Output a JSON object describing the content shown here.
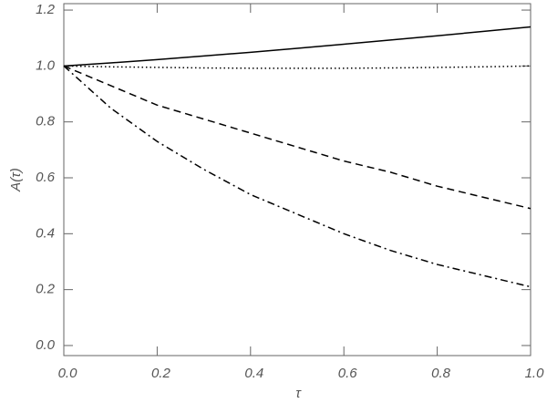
{
  "chart_data": {
    "type": "line",
    "xlabel": "τ",
    "ylabel": "A(τ)",
    "x": [
      0,
      0.1,
      0.2,
      0.3,
      0.4,
      0.5,
      0.6,
      0.7,
      0.8,
      0.9,
      1
    ],
    "series": [
      {
        "color": "#000000",
        "style": "solid",
        "values": [
          1.0,
          1.011,
          1.023,
          1.036,
          1.049,
          1.063,
          1.078,
          1.093,
          1.108,
          1.124,
          1.14
        ]
      },
      {
        "color": "#000000",
        "style": "dotted",
        "values": [
          1.0,
          0.997,
          0.995,
          0.993,
          0.992,
          0.992,
          0.992,
          0.993,
          0.995,
          0.997,
          1.0
        ]
      },
      {
        "color": "#000000",
        "style": "dashed",
        "values": [
          1.0,
          0.93,
          0.86,
          0.81,
          0.76,
          0.71,
          0.66,
          0.62,
          0.57,
          0.53,
          0.49
        ]
      },
      {
        "color": "#000000",
        "style": "dashdot",
        "values": [
          1.0,
          0.85,
          0.73,
          0.63,
          0.54,
          0.47,
          0.4,
          0.34,
          0.29,
          0.25,
          0.21
        ]
      }
    ],
    "xlim": [
      0,
      1
    ],
    "ylim": [
      -0.036,
      1.223
    ],
    "xticks": [
      {
        "value": 0,
        "label": "0.0"
      },
      0.2,
      0.4,
      0.6,
      0.8,
      {
        "value": 1,
        "label": "1.0"
      }
    ],
    "yticks": [
      {
        "value": 0,
        "label": "0.0"
      },
      0.2,
      0.4,
      0.6,
      0.8,
      {
        "value": 1,
        "label": "1.0"
      },
      1.2
    ]
  }
}
